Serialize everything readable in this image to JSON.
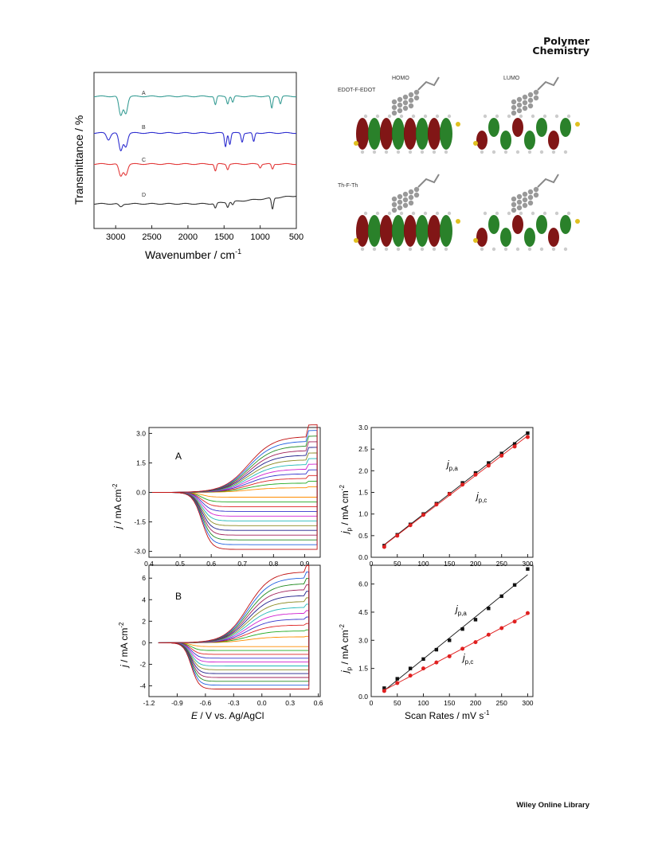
{
  "header": {
    "journal_line1": "Polymer",
    "journal_line2": "Chemistry"
  },
  "footer": {
    "publisher": "Wiley Online Library"
  },
  "ir_panel": {
    "ylabel": "Transmittance / %",
    "xlabel": "Wavenumber / cm",
    "xlabel_sup": "-1",
    "xticks": [
      "3000",
      "2500",
      "2000",
      "1500",
      "1000",
      "500"
    ],
    "series_labels": [
      "A",
      "B",
      "C",
      "D"
    ],
    "colors": [
      "#3a9e96",
      "#2f2fd0",
      "#e33a3a",
      "#333333"
    ]
  },
  "orbital_panel": {
    "col_labels": [
      "HOMO",
      "LUMO"
    ],
    "row_labels": [
      "EDOT-F-EDOT",
      "Th-F-Th"
    ]
  },
  "cv_panels": {
    "ylabel_j": "j",
    "ylabel_unit": " / mA cm",
    "ylabel_sup": "-2",
    "xlabel_E": "E",
    "xlabel_rest": " / V vs. Ag/AgCl",
    "A": {
      "label": "A",
      "yticks": [
        "3.0",
        "1.5",
        "0.0",
        "-1.5",
        "-3.0"
      ],
      "xticks": [
        "0.4",
        "0.5",
        "0.6",
        "0.7",
        "0.8",
        "0.9"
      ]
    },
    "B": {
      "label": "B",
      "yticks": [
        "6",
        "4",
        "2",
        "0",
        "-2",
        "-4"
      ],
      "xticks": [
        "-1.2",
        "-0.9",
        "-0.6",
        "-0.3",
        "0.0",
        "0.3",
        "0.6"
      ]
    }
  },
  "scan_panels": {
    "ylabel_j": "j",
    "ylabel_sub": "p",
    "ylabel_unit": " / mA cm",
    "ylabel_sup": "-2",
    "xlabel": "Scan Rates / mV s",
    "xlabel_sup": "-1",
    "anodic_label": "j",
    "anodic_sub": "p,a",
    "cathodic_label": "j",
    "cathodic_sub": "p,c"
  },
  "chart_data": [
    {
      "type": "line",
      "title": "",
      "xlabel": "Wavenumber / cm-1",
      "ylabel": "Transmittance / %",
      "xlim": [
        3300,
        500
      ],
      "series": [
        {
          "name": "A",
          "dips": [
            [
              2930,
              0.8
            ],
            [
              2860,
              0.7
            ],
            [
              1620,
              0.35
            ],
            [
              1450,
              0.3
            ],
            [
              1380,
              0.25
            ],
            [
              840,
              0.5
            ],
            [
              720,
              0.3
            ]
          ]
        },
        {
          "name": "B",
          "dips": [
            [
              3100,
              0.3
            ],
            [
              2930,
              0.8
            ],
            [
              2860,
              0.6
            ],
            [
              1480,
              0.6
            ],
            [
              1420,
              0.5
            ],
            [
              1250,
              0.4
            ],
            [
              1090,
              0.4
            ]
          ]
        },
        {
          "name": "C",
          "dips": [
            [
              2930,
              0.7
            ],
            [
              2860,
              0.6
            ],
            [
              1620,
              0.4
            ],
            [
              1450,
              0.3
            ],
            [
              1000,
              0.2
            ],
            [
              830,
              0.3
            ]
          ]
        },
        {
          "name": "D",
          "dips": [
            [
              2930,
              0.2
            ],
            [
              1620,
              0.3
            ],
            [
              1450,
              0.3
            ],
            [
              1380,
              0.2
            ],
            [
              830,
              0.7
            ]
          ]
        }
      ]
    },
    {
      "type": "line",
      "title": "",
      "xlabel": "E / V vs. Ag/AgCl",
      "ylabel": "j / mA cm-2",
      "xlim": [
        0.4,
        0.95
      ],
      "ylim": [
        -3.3,
        3.3
      ],
      "scan_rates": [
        25,
        50,
        75,
        100,
        125,
        150,
        175,
        200,
        225,
        250,
        275,
        300
      ]
    },
    {
      "type": "scatter",
      "title": "",
      "xlabel": "Scan Rates / mV s-1",
      "ylabel": "jp / mA cm-2",
      "xlim": [
        0,
        310
      ],
      "ylim": [
        0.0,
        3.0
      ],
      "x": [
        25,
        50,
        75,
        100,
        125,
        150,
        175,
        200,
        225,
        250,
        275,
        300
      ],
      "series": [
        {
          "name": "jp,a",
          "values": [
            0.27,
            0.52,
            0.76,
            1.0,
            1.24,
            1.47,
            1.72,
            1.95,
            2.18,
            2.4,
            2.62,
            2.87
          ]
        },
        {
          "name": "jp,c",
          "values": [
            0.24,
            0.5,
            0.74,
            0.98,
            1.22,
            1.46,
            1.68,
            1.91,
            2.12,
            2.35,
            2.56,
            2.78
          ]
        }
      ]
    },
    {
      "type": "line",
      "title": "",
      "xlabel": "E / V vs. Ag/AgCl",
      "ylabel": "j / mA cm-2",
      "xlim": [
        -1.2,
        0.62
      ],
      "ylim": [
        -5,
        7.2
      ],
      "scan_rates": [
        25,
        50,
        75,
        100,
        125,
        150,
        175,
        200,
        225,
        250,
        275,
        300
      ]
    },
    {
      "type": "scatter",
      "title": "",
      "xlabel": "Scan Rates / mV s-1",
      "ylabel": "jp / mA cm-2",
      "xlim": [
        0,
        310
      ],
      "ylim": [
        0.0,
        7.0
      ],
      "x": [
        25,
        50,
        75,
        100,
        125,
        150,
        175,
        200,
        225,
        250,
        275,
        300
      ],
      "series": [
        {
          "name": "jp,a",
          "values": [
            0.45,
            0.95,
            1.5,
            2.0,
            2.5,
            3.0,
            3.6,
            4.1,
            4.7,
            5.35,
            5.95,
            6.8
          ]
        },
        {
          "name": "jp,c",
          "values": [
            0.3,
            0.72,
            1.12,
            1.5,
            1.82,
            2.15,
            2.55,
            2.9,
            3.3,
            3.65,
            4.0,
            4.45
          ]
        }
      ]
    }
  ]
}
